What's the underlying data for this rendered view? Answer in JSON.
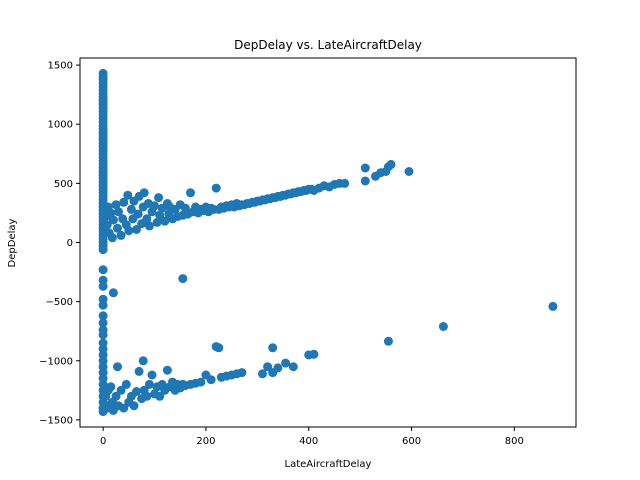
{
  "chart_data": {
    "type": "scatter",
    "title": "DepDelay vs. LateAircraftDelay",
    "xlabel": "LateAircraftDelay",
    "ylabel": "DepDelay",
    "xlim": [
      -45,
      920
    ],
    "ylim": [
      -1560,
      1560
    ],
    "xticks": [
      0,
      200,
      400,
      600,
      800
    ],
    "yticks": [
      -1500,
      -1000,
      -500,
      0,
      500,
      1000,
      1500
    ],
    "grid": false,
    "marker_color": "#1f77b4",
    "series": [
      {
        "points": [
          [
            0,
            1430
          ],
          [
            0,
            1400
          ],
          [
            0,
            1380
          ],
          [
            0,
            1350
          ],
          [
            0,
            1320
          ],
          [
            0,
            1290
          ],
          [
            0,
            1260
          ],
          [
            0,
            1230
          ],
          [
            0,
            1200
          ],
          [
            0,
            1170
          ],
          [
            0,
            1140
          ],
          [
            0,
            1110
          ],
          [
            0,
            1080
          ],
          [
            0,
            1050
          ],
          [
            0,
            1020
          ],
          [
            0,
            990
          ],
          [
            0,
            960
          ],
          [
            0,
            930
          ],
          [
            0,
            900
          ],
          [
            0,
            870
          ],
          [
            0,
            840
          ],
          [
            0,
            810
          ],
          [
            0,
            780
          ],
          [
            0,
            750
          ],
          [
            0,
            720
          ],
          [
            0,
            690
          ],
          [
            0,
            660
          ],
          [
            0,
            630
          ],
          [
            0,
            600
          ],
          [
            0,
            570
          ],
          [
            0,
            540
          ],
          [
            0,
            510
          ],
          [
            0,
            480
          ],
          [
            0,
            450
          ],
          [
            0,
            420
          ],
          [
            0,
            390
          ],
          [
            0,
            360
          ],
          [
            0,
            330
          ],
          [
            0,
            300
          ],
          [
            0,
            270
          ],
          [
            0,
            240
          ],
          [
            0,
            210
          ],
          [
            0,
            180
          ],
          [
            0,
            150
          ],
          [
            0,
            120
          ],
          [
            0,
            90
          ],
          [
            0,
            60
          ],
          [
            0,
            30
          ],
          [
            0,
            0
          ],
          [
            0,
            -30
          ],
          [
            0,
            -60
          ],
          [
            5,
            220
          ],
          [
            8,
            150
          ],
          [
            10,
            300
          ],
          [
            12,
            80
          ],
          [
            15,
            250
          ],
          [
            18,
            40
          ],
          [
            20,
            190
          ],
          [
            25,
            320
          ],
          [
            28,
            120
          ],
          [
            30,
            260
          ],
          [
            35,
            60
          ],
          [
            38,
            200
          ],
          [
            40,
            340
          ],
          [
            45,
            150
          ],
          [
            48,
            400
          ],
          [
            50,
            100
          ],
          [
            55,
            280
          ],
          [
            58,
            200
          ],
          [
            60,
            350
          ],
          [
            65,
            110
          ],
          [
            68,
            240
          ],
          [
            70,
            390
          ],
          [
            75,
            160
          ],
          [
            78,
            300
          ],
          [
            80,
            420
          ],
          [
            85,
            200
          ],
          [
            88,
            330
          ],
          [
            90,
            140
          ],
          [
            95,
            260
          ],
          [
            100,
            310
          ],
          [
            105,
            170
          ],
          [
            108,
            380
          ],
          [
            110,
            230
          ],
          [
            115,
            290
          ],
          [
            120,
            180
          ],
          [
            125,
            330
          ],
          [
            128,
            240
          ],
          [
            130,
            300
          ],
          [
            135,
            200
          ],
          [
            140,
            280
          ],
          [
            145,
            220
          ],
          [
            150,
            320
          ],
          [
            155,
            230
          ],
          [
            160,
            290
          ],
          [
            165,
            240
          ],
          [
            170,
            420
          ],
          [
            175,
            260
          ],
          [
            180,
            300
          ],
          [
            185,
            250
          ],
          [
            190,
            280
          ],
          [
            195,
            270
          ],
          [
            200,
            300
          ],
          [
            205,
            260
          ],
          [
            210,
            290
          ],
          [
            215,
            280
          ],
          [
            220,
            460
          ],
          [
            225,
            280
          ],
          [
            230,
            300
          ],
          [
            235,
            290
          ],
          [
            240,
            310
          ],
          [
            245,
            300
          ],
          [
            250,
            320
          ],
          [
            255,
            300
          ],
          [
            260,
            330
          ],
          [
            265,
            310
          ],
          [
            270,
            320
          ],
          [
            275,
            320
          ],
          [
            280,
            330
          ],
          [
            285,
            330
          ],
          [
            290,
            340
          ],
          [
            295,
            340
          ],
          [
            300,
            350
          ],
          [
            305,
            350
          ],
          [
            310,
            360
          ],
          [
            315,
            360
          ],
          [
            320,
            370
          ],
          [
            325,
            370
          ],
          [
            330,
            380
          ],
          [
            335,
            380
          ],
          [
            340,
            390
          ],
          [
            345,
            390
          ],
          [
            350,
            400
          ],
          [
            355,
            400
          ],
          [
            360,
            410
          ],
          [
            365,
            410
          ],
          [
            370,
            420
          ],
          [
            375,
            420
          ],
          [
            380,
            430
          ],
          [
            385,
            430
          ],
          [
            390,
            440
          ],
          [
            395,
            440
          ],
          [
            400,
            450
          ],
          [
            405,
            450
          ],
          [
            410,
            440
          ],
          [
            420,
            460
          ],
          [
            430,
            480
          ],
          [
            440,
            470
          ],
          [
            450,
            490
          ],
          [
            460,
            500
          ],
          [
            470,
            500
          ],
          [
            510,
            520
          ],
          [
            510,
            630
          ],
          [
            530,
            560
          ],
          [
            540,
            590
          ],
          [
            550,
            600
          ],
          [
            555,
            640
          ],
          [
            560,
            660
          ],
          [
            595,
            600
          ],
          [
            155,
            -305
          ],
          [
            20,
            -425
          ],
          [
            0,
            -230
          ],
          [
            0,
            -320
          ],
          [
            0,
            -370
          ],
          [
            0,
            -480
          ],
          [
            0,
            -530
          ],
          [
            0,
            -620
          ],
          [
            0,
            -680
          ],
          [
            0,
            -740
          ],
          [
            0,
            -780
          ],
          [
            0,
            -850
          ],
          [
            0,
            -900
          ],
          [
            0,
            -950
          ],
          [
            0,
            -1000
          ],
          [
            0,
            -1050
          ],
          [
            0,
            -1100
          ],
          [
            0,
            -1150
          ],
          [
            0,
            -1200
          ],
          [
            0,
            -1250
          ],
          [
            0,
            -1300
          ],
          [
            0,
            -1350
          ],
          [
            0,
            -1400
          ],
          [
            0,
            -1430
          ],
          [
            5,
            -1300
          ],
          [
            8,
            -1380
          ],
          [
            10,
            -1250
          ],
          [
            12,
            -1400
          ],
          [
            15,
            -1220
          ],
          [
            18,
            -1350
          ],
          [
            20,
            -1420
          ],
          [
            25,
            -1300
          ],
          [
            28,
            -1050
          ],
          [
            30,
            -1380
          ],
          [
            35,
            -1250
          ],
          [
            40,
            -1400
          ],
          [
            45,
            -1200
          ],
          [
            50,
            -1350
          ],
          [
            55,
            -1300
          ],
          [
            60,
            -1380
          ],
          [
            65,
            -1260
          ],
          [
            70,
            -1090
          ],
          [
            75,
            -1320
          ],
          [
            78,
            -1000
          ],
          [
            80,
            -1250
          ],
          [
            85,
            -1300
          ],
          [
            90,
            -1200
          ],
          [
            95,
            -1120
          ],
          [
            100,
            -1280
          ],
          [
            105,
            -1220
          ],
          [
            110,
            -1300
          ],
          [
            115,
            -1200
          ],
          [
            120,
            -1250
          ],
          [
            125,
            -1080
          ],
          [
            130,
            -1220
          ],
          [
            135,
            -1180
          ],
          [
            140,
            -1250
          ],
          [
            145,
            -1200
          ],
          [
            150,
            -1230
          ],
          [
            155,
            -1200
          ],
          [
            160,
            -1210
          ],
          [
            170,
            -1200
          ],
          [
            180,
            -1190
          ],
          [
            190,
            -1180
          ],
          [
            200,
            -1120
          ],
          [
            210,
            -1160
          ],
          [
            220,
            -880
          ],
          [
            225,
            -890
          ],
          [
            230,
            -1140
          ],
          [
            240,
            -1130
          ],
          [
            250,
            -1120
          ],
          [
            260,
            -1110
          ],
          [
            270,
            -1100
          ],
          [
            310,
            -1110
          ],
          [
            320,
            -1050
          ],
          [
            330,
            -890
          ],
          [
            330,
            -1100
          ],
          [
            340,
            -1060
          ],
          [
            355,
            -1020
          ],
          [
            370,
            -1050
          ],
          [
            400,
            -950
          ],
          [
            410,
            -945
          ],
          [
            555,
            -835
          ],
          [
            662,
            -710
          ],
          [
            875,
            -540
          ]
        ]
      }
    ]
  }
}
